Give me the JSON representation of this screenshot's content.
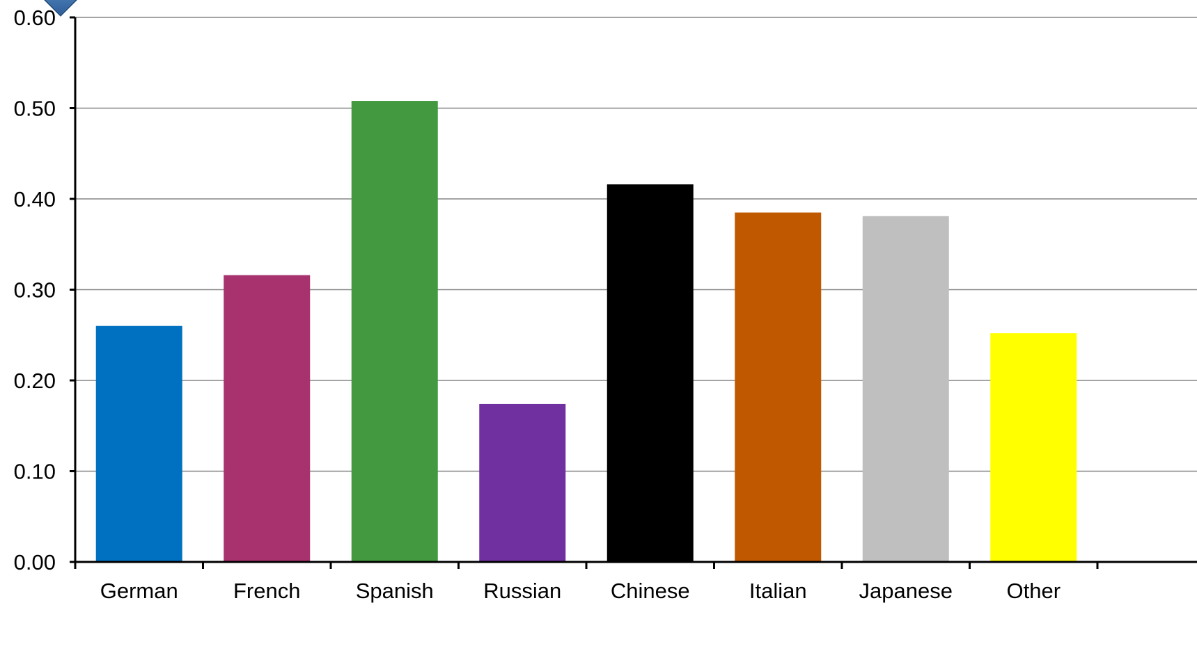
{
  "chart_data": {
    "type": "bar",
    "categories": [
      "German",
      "French",
      "Spanish",
      "Russian",
      "Chinese",
      "Italian",
      "Japanese",
      "Other"
    ],
    "values": [
      0.26,
      0.316,
      0.508,
      0.174,
      0.416,
      0.385,
      0.381,
      0.252
    ],
    "colors": [
      "#0070c0",
      "#a8326e",
      "#43993f",
      "#7030a0",
      "#000000",
      "#c05800",
      "#bfbfbf",
      "#ffff00"
    ],
    "title": "",
    "xlabel": "",
    "ylabel": "",
    "ylim": [
      0,
      0.6
    ],
    "yticks": [
      "0.00",
      "0.10",
      "0.20",
      "0.30",
      "0.40",
      "0.50",
      "0.60"
    ],
    "grid": true,
    "legend": "none"
  }
}
